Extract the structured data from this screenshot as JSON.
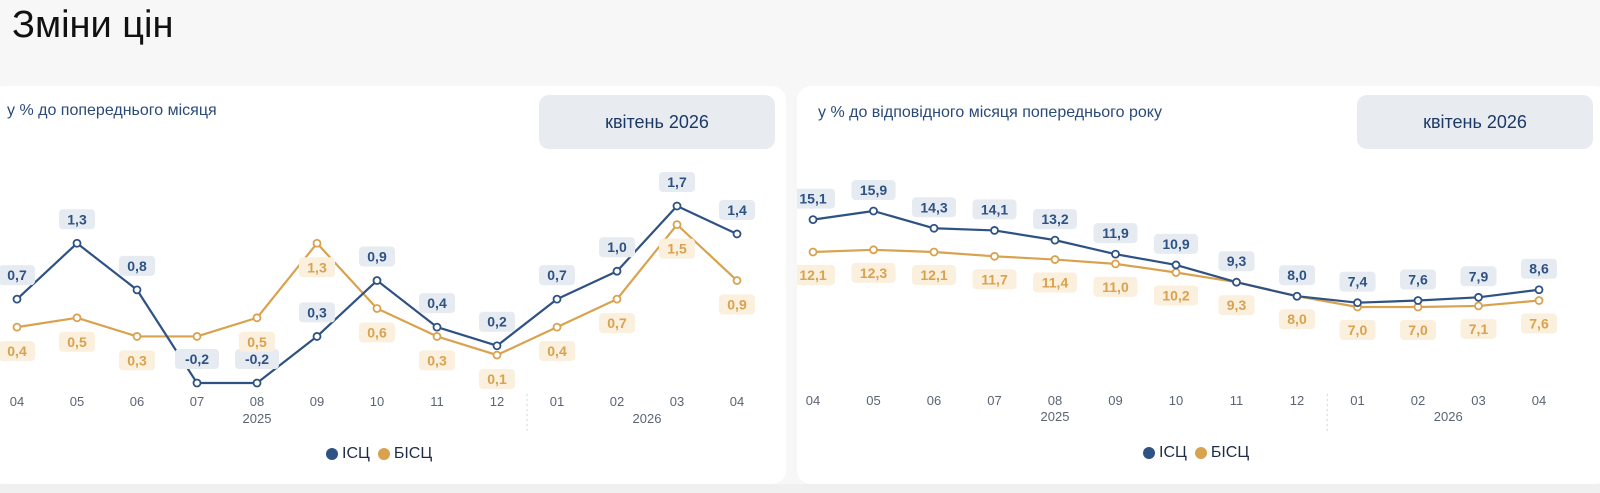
{
  "page": {
    "title": "Зміни цін"
  },
  "colors": {
    "cpi": "#2e5283",
    "core": "#d9a24e",
    "cpi_label_bg": "#e6ebf2",
    "core_label_bg": "#fbefdd"
  },
  "charts": [
    {
      "subtitle": "у % до попереднього місяця",
      "period_button": "квітень 2026",
      "legend": [
        {
          "label": "ІСЦ"
        },
        {
          "label": "БІСЦ"
        }
      ]
    },
    {
      "subtitle": "у % до відповідного місяця попереднього року",
      "period_button": "квітень 2026",
      "legend": [
        {
          "label": "ІСЦ"
        },
        {
          "label": "БІСЦ"
        }
      ]
    }
  ],
  "chart_data": [
    {
      "type": "line",
      "categories": [
        "04",
        "05",
        "06",
        "07",
        "08",
        "09",
        "10",
        "11",
        "12",
        "01",
        "02",
        "03",
        "04"
      ],
      "year_labels": [
        {
          "label": "2025",
          "from": 0,
          "to": 8
        },
        {
          "label": "2026",
          "from": 9,
          "to": 12
        }
      ],
      "ylim": [
        -0.2,
        1.7
      ],
      "series": [
        {
          "name": "ІСЦ",
          "values": [
            0.7,
            1.3,
            0.8,
            -0.2,
            -0.2,
            0.3,
            0.9,
            0.4,
            0.2,
            0.7,
            1.0,
            1.7,
            1.4
          ],
          "labels": [
            "0,7",
            "1,3",
            "0,8",
            "-0,2",
            "-0,2",
            "0,3",
            "0,9",
            "0,4",
            "0,2",
            "0,7",
            "1,0",
            "1,7",
            "1,4"
          ]
        },
        {
          "name": "БІСЦ",
          "values": [
            0.4,
            0.5,
            0.3,
            0.3,
            0.5,
            1.3,
            0.6,
            0.3,
            0.1,
            0.4,
            0.7,
            1.5,
            0.9
          ],
          "labels": [
            "0,4",
            "0,5",
            "0,3",
            "",
            "0,5",
            "1,3",
            "0,6",
            "0,3",
            "0,1",
            "0,4",
            "0,7",
            "1,5",
            "0,9"
          ]
        }
      ]
    },
    {
      "type": "line",
      "categories": [
        "04",
        "05",
        "06",
        "07",
        "08",
        "09",
        "10",
        "11",
        "12",
        "01",
        "02",
        "03",
        "04"
      ],
      "year_labels": [
        {
          "label": "2025",
          "from": 0,
          "to": 8
        },
        {
          "label": "2026",
          "from": 9,
          "to": 12
        }
      ],
      "ylim": [
        7.0,
        15.9
      ],
      "series": [
        {
          "name": "ІСЦ",
          "values": [
            15.1,
            15.9,
            14.3,
            14.1,
            13.2,
            11.9,
            10.9,
            9.3,
            8.0,
            7.4,
            7.6,
            7.9,
            8.6
          ],
          "labels": [
            "15,1",
            "15,9",
            "14,3",
            "14,1",
            "13,2",
            "11,9",
            "10,9",
            "9,3",
            "8,0",
            "7,4",
            "7,6",
            "7,9",
            "8,6"
          ]
        },
        {
          "name": "БІСЦ",
          "values": [
            12.1,
            12.3,
            12.1,
            11.7,
            11.4,
            11.0,
            10.2,
            9.3,
            8.0,
            7.0,
            7.0,
            7.1,
            7.6
          ],
          "labels": [
            "12,1",
            "12,3",
            "12,1",
            "11,7",
            "11,4",
            "11,0",
            "10,2",
            "9,3",
            "8,0",
            "7,0",
            "7,0",
            "7,1",
            "7,6"
          ]
        }
      ]
    }
  ]
}
